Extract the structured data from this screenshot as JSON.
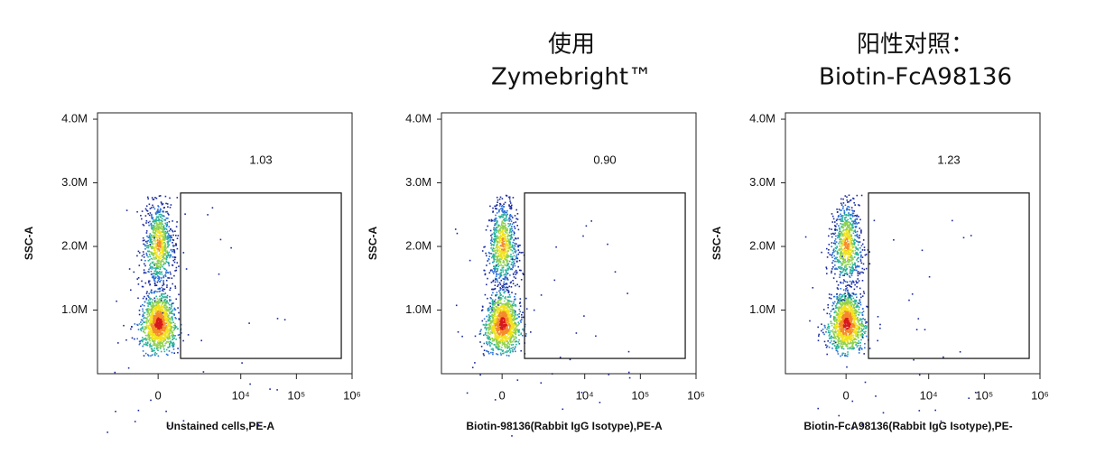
{
  "chart_data": [
    {
      "type": "flow-density",
      "ylabel": "SSC-A",
      "xlabel": "Unstained cells,PE-A",
      "xscale": "biexponential",
      "xlim": [
        -4000,
        1000000
      ],
      "ylim": [
        0,
        4100000
      ],
      "xticks": [
        0,
        {
          "value": 10000,
          "label": "10⁴"
        },
        {
          "value": 100000,
          "label": "10⁵"
        },
        {
          "value": 1000000,
          "label": "10⁶"
        }
      ],
      "yticks": [
        {
          "value": 1000000,
          "label": "1.0M"
        },
        {
          "value": 2000000,
          "label": "2.0M"
        },
        {
          "value": 3000000,
          "label": "3.0M"
        },
        {
          "value": 4000000,
          "label": "4.0M"
        }
      ],
      "gate": {
        "percent": 1.03,
        "xlim": [
          700,
          640000
        ],
        "ylim": [
          240000,
          2840000
        ]
      }
    },
    {
      "type": "flow-density",
      "title": [
        "使用",
        "Zymebright™"
      ],
      "ylabel": "SSC-A",
      "xlabel": "Biotin-98136(Rabbit IgG Isotype),PE-A",
      "xscale": "biexponential",
      "xlim": [
        -4000,
        1000000
      ],
      "ylim": [
        0,
        4100000
      ],
      "xticks": [
        0,
        {
          "value": 10000,
          "label": "10⁴"
        },
        {
          "value": 100000,
          "label": "10⁵"
        },
        {
          "value": 1000000,
          "label": "10⁶"
        }
      ],
      "yticks": [
        {
          "value": 1000000,
          "label": "1.0M"
        },
        {
          "value": 2000000,
          "label": "2.0M"
        },
        {
          "value": 3000000,
          "label": "3.0M"
        },
        {
          "value": 4000000,
          "label": "4.0M"
        }
      ],
      "gate": {
        "percent": 0.9,
        "percent_label": "0.90",
        "xlim": [
          700,
          640000
        ],
        "ylim": [
          240000,
          2840000
        ]
      }
    },
    {
      "type": "flow-density",
      "title": [
        "阳性对照：",
        "Biotin-FcA98136"
      ],
      "ylabel": "SSC-A",
      "xlabel": "Biotin-FcA98136(Rabbit IgG Isotype),PE-",
      "xscale": "biexponential",
      "xlim": [
        -4000,
        1000000
      ],
      "ylim": [
        0,
        4100000
      ],
      "xticks": [
        0,
        {
          "value": 10000,
          "label": "10⁴"
        },
        {
          "value": 100000,
          "label": "10⁵"
        },
        {
          "value": 1000000,
          "label": "10⁶"
        }
      ],
      "yticks": [
        {
          "value": 1000000,
          "label": "1.0M"
        },
        {
          "value": 2000000,
          "label": "2.0M"
        },
        {
          "value": 3000000,
          "label": "3.0M"
        },
        {
          "value": 4000000,
          "label": "4.0M"
        }
      ],
      "gate": {
        "percent": 1.23,
        "xlim": [
          700,
          640000
        ],
        "ylim": [
          240000,
          2840000
        ]
      }
    }
  ]
}
